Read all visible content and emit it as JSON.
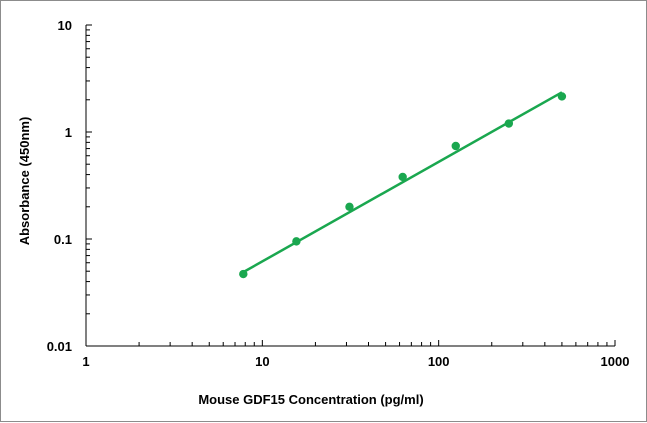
{
  "chart_data": {
    "type": "scatter",
    "xlabel": "Mouse GDF15 Concentration (pg/ml)",
    "ylabel": "Absorbance (450nm)",
    "x_scale": "log",
    "y_scale": "log",
    "xlim": [
      1,
      1000
    ],
    "ylim": [
      0.01,
      10
    ],
    "x_ticks": [
      "1",
      "10",
      "100",
      "1000"
    ],
    "y_ticks": [
      "0.01",
      "0.1",
      "1",
      "10"
    ],
    "grid": false,
    "legend": "none",
    "color": "#1aa74f",
    "points": [
      {
        "x": 7.8,
        "y": 0.047
      },
      {
        "x": 15.6,
        "y": 0.095
      },
      {
        "x": 31.2,
        "y": 0.2
      },
      {
        "x": 62.5,
        "y": 0.38
      },
      {
        "x": 125,
        "y": 0.74
      },
      {
        "x": 250,
        "y": 1.2
      },
      {
        "x": 500,
        "y": 2.15
      }
    ],
    "fit_line": {
      "x": [
        7.8,
        500
      ],
      "y": [
        0.049,
        2.35
      ]
    }
  }
}
